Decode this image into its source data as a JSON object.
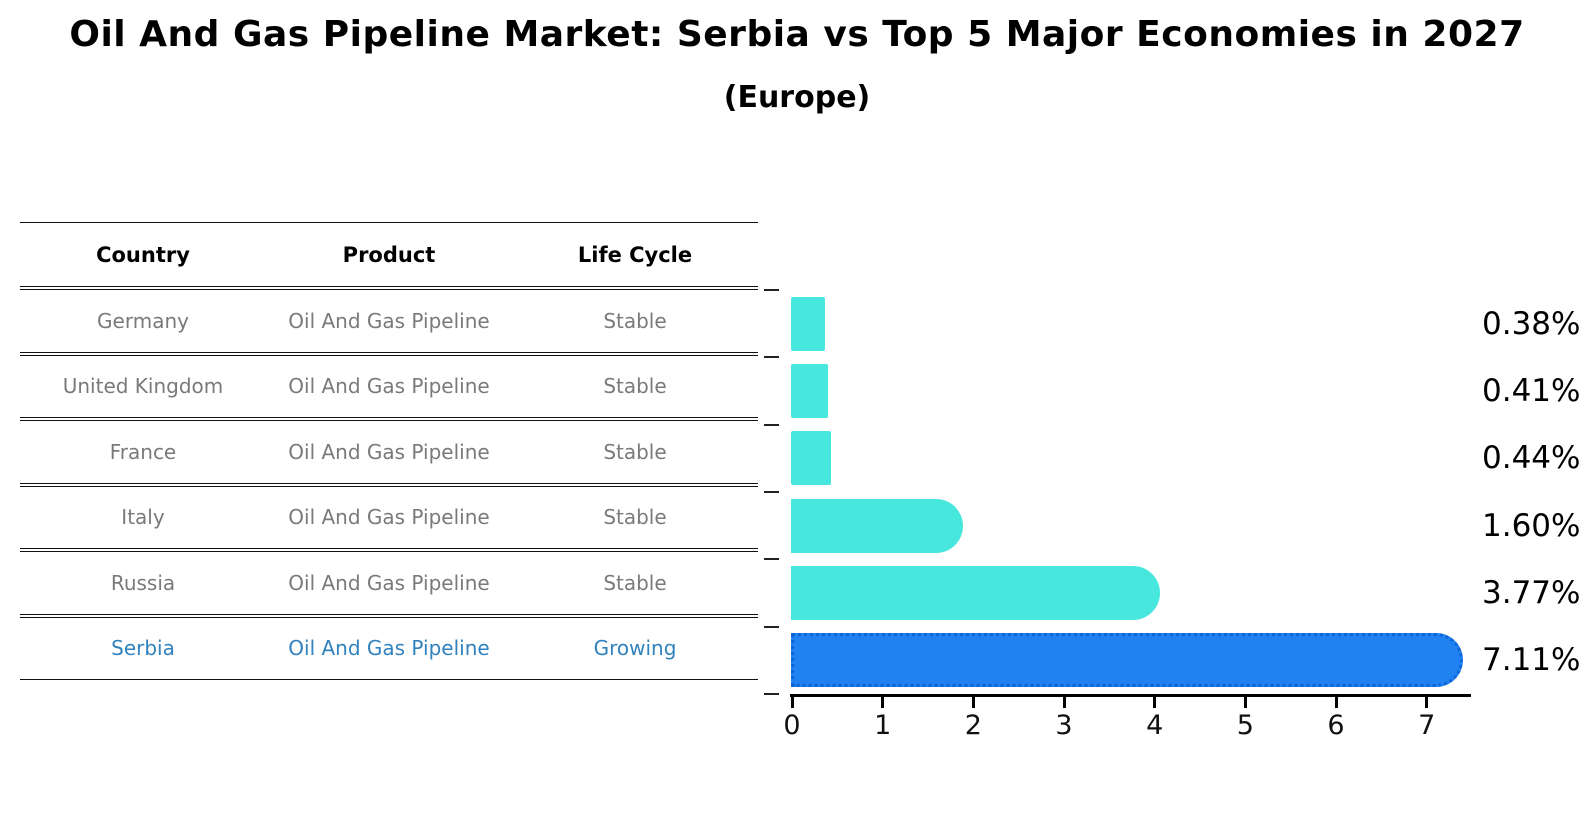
{
  "title": "Oil And Gas Pipeline Market: Serbia vs Top 5 Major Economies in 2027",
  "subtitle": "(Europe)",
  "table": {
    "headers": [
      "Country",
      "Product",
      "Life Cycle"
    ],
    "rows": [
      {
        "country": "Germany",
        "product": "Oil And Gas Pipeline",
        "life_cycle": "Stable",
        "highlighted": false
      },
      {
        "country": "United Kingdom",
        "product": "Oil And Gas Pipeline",
        "life_cycle": "Stable",
        "highlighted": false
      },
      {
        "country": "France",
        "product": "Oil And Gas Pipeline",
        "life_cycle": "Stable",
        "highlighted": false
      },
      {
        "country": "Italy",
        "product": "Oil And Gas Pipeline",
        "life_cycle": "Stable",
        "highlighted": false
      },
      {
        "country": "Russia",
        "product": "Oil And Gas Pipeline",
        "life_cycle": "Stable",
        "highlighted": false
      },
      {
        "country": "Serbia",
        "product": "Oil And Gas Pipeline",
        "life_cycle": "Growing",
        "highlighted": true
      }
    ]
  },
  "chart_data": {
    "type": "bar",
    "orientation": "horizontal",
    "title": "Oil And Gas Pipeline Market: Serbia vs Top 5 Major Economies in 2027",
    "subtitle": "(Europe)",
    "categories": [
      "Germany",
      "United Kingdom",
      "France",
      "Italy",
      "Russia",
      "Serbia"
    ],
    "values": [
      0.38,
      0.41,
      0.44,
      1.6,
      3.77,
      7.11
    ],
    "value_labels": [
      "0.38%",
      "0.41%",
      "0.44%",
      "1.60%",
      "3.77%",
      "7.11%"
    ],
    "x_ticks": [
      "0",
      "1",
      "2",
      "3",
      "4",
      "5",
      "6",
      "7"
    ],
    "xlim": [
      0,
      7.5
    ],
    "grid": false,
    "legend": false,
    "highlight_index": 5,
    "colors": {
      "bar": "#47e7dd",
      "highlight_bar": "#1f82f0",
      "highlight_bar_border": "#1062d8",
      "highlight_text": "#3182bd",
      "table_text": "#7a7a7a",
      "heading_text": "#000000"
    }
  }
}
